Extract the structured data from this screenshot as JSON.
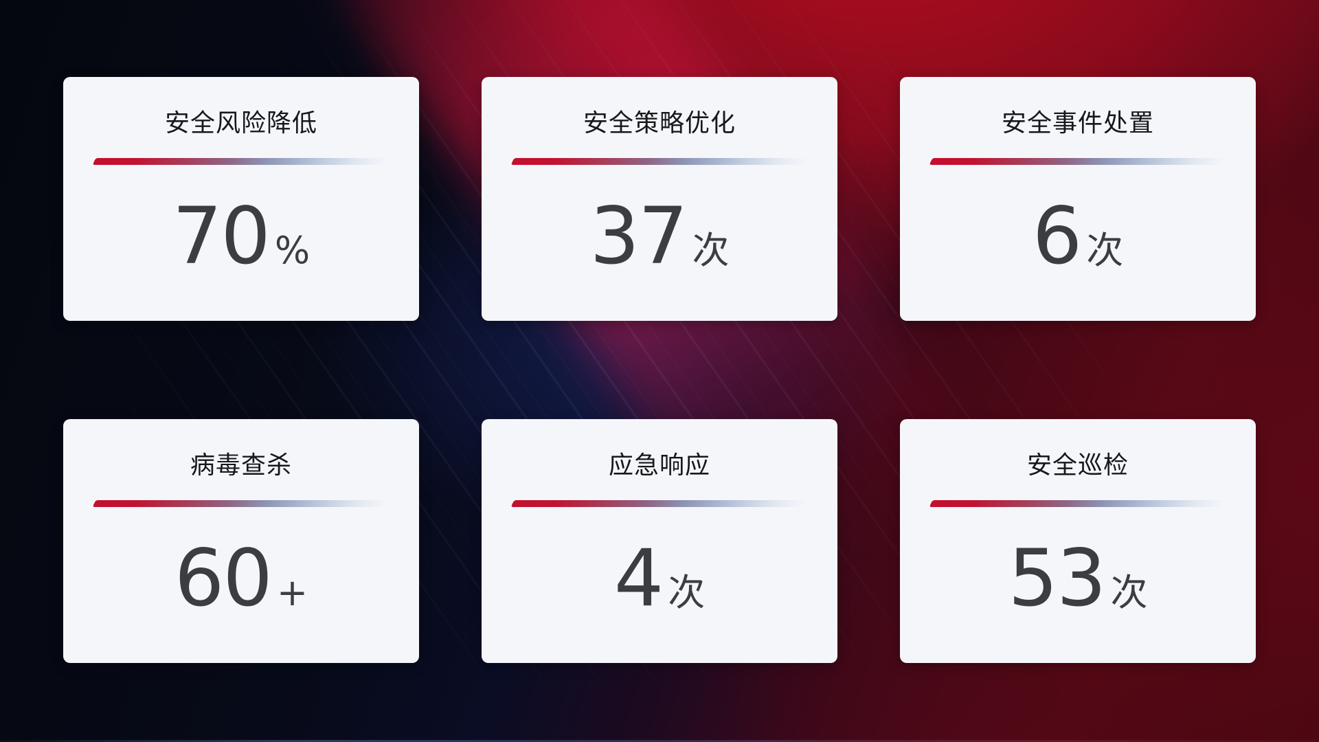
{
  "theme": {
    "card_bg": "#f5f6fa",
    "title_color": "#17181c",
    "value_color": "#3b3d42",
    "divider_red": "#c50f2f",
    "divider_blue": "#a9b6d0",
    "bg_dark_navy": "#05070f",
    "bg_bright_red": "#ad0e1e",
    "bg_dark_red": "#5c0814"
  },
  "cards": [
    {
      "title": "安全风险降低",
      "value": "70",
      "unit": "%"
    },
    {
      "title": "安全策略优化",
      "value": "37",
      "unit": "次"
    },
    {
      "title": "安全事件处置",
      "value": "6",
      "unit": "次"
    },
    {
      "title": "病毒查杀",
      "value": "60",
      "unit": "+"
    },
    {
      "title": "应急响应",
      "value": "4",
      "unit": "次"
    },
    {
      "title": "安全巡检",
      "value": "53",
      "unit": "次"
    }
  ]
}
